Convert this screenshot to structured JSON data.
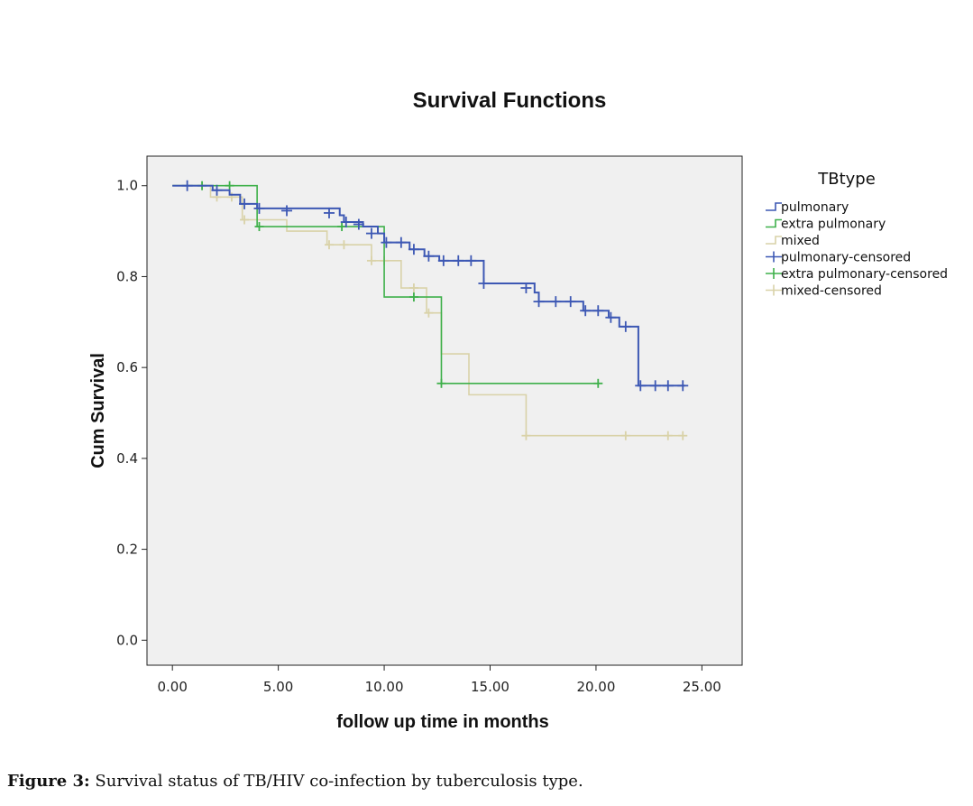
{
  "chart_data": {
    "type": "line",
    "subtype": "kaplan-meier-step",
    "title": "Survival Functions",
    "xlabel": "follow up time in months",
    "ylabel": "Cum Survival",
    "xlim": [
      -1.2,
      26.9
    ],
    "ylim": [
      -0.055,
      1.065
    ],
    "xticks": [
      0,
      5,
      10,
      15,
      20,
      25
    ],
    "xtick_labels": [
      "0.00",
      "5.00",
      "10.00",
      "15.00",
      "20.00",
      "25.00"
    ],
    "yticks": [
      0,
      0.2,
      0.4,
      0.6,
      0.8,
      1.0
    ],
    "ytick_labels": [
      "0.0",
      "0.2",
      "0.4",
      "0.6",
      "0.8",
      "1.0"
    ],
    "grid": false,
    "legend_title": "TBtype",
    "legend_position": "right",
    "legend": [
      {
        "label": "pulmonary",
        "kind": "step",
        "color": "#3d58b4"
      },
      {
        "label": "extra pulmonary",
        "kind": "step",
        "color": "#3eb04a"
      },
      {
        "label": "mixed",
        "kind": "step",
        "color": "#d9d2a8"
      },
      {
        "label": "pulmonary-censored",
        "kind": "censor",
        "color": "#3d58b4"
      },
      {
        "label": "extra pulmonary-censored",
        "kind": "censor",
        "color": "#3eb04a"
      },
      {
        "label": "mixed-censored",
        "kind": "censor",
        "color": "#d9d2a8"
      }
    ],
    "series": [
      {
        "name": "pulmonary",
        "color": "#3d58b4",
        "steps": [
          [
            0,
            1.0
          ],
          [
            1.9,
            0.99
          ],
          [
            2.7,
            0.98
          ],
          [
            3.2,
            0.96
          ],
          [
            4.0,
            0.95
          ],
          [
            7.9,
            0.935
          ],
          [
            8.1,
            0.92
          ],
          [
            9.0,
            0.91
          ],
          [
            9.7,
            0.895
          ],
          [
            10.0,
            0.875
          ],
          [
            11.2,
            0.86
          ],
          [
            11.9,
            0.845
          ],
          [
            12.6,
            0.835
          ],
          [
            14.7,
            0.785
          ],
          [
            17.1,
            0.765
          ],
          [
            17.3,
            0.745
          ],
          [
            19.4,
            0.725
          ],
          [
            20.6,
            0.71
          ],
          [
            21.1,
            0.69
          ],
          [
            22.0,
            0.56
          ],
          [
            24.2,
            0.56
          ]
        ],
        "censored": [
          [
            0.7,
            1.0
          ],
          [
            2.1,
            0.99
          ],
          [
            3.4,
            0.96
          ],
          [
            4.1,
            0.95
          ],
          [
            5.4,
            0.945
          ],
          [
            7.4,
            0.94
          ],
          [
            8.2,
            0.92
          ],
          [
            8.8,
            0.915
          ],
          [
            9.4,
            0.895
          ],
          [
            10.1,
            0.875
          ],
          [
            10.8,
            0.875
          ],
          [
            11.4,
            0.86
          ],
          [
            12.1,
            0.845
          ],
          [
            12.8,
            0.835
          ],
          [
            13.5,
            0.835
          ],
          [
            14.1,
            0.835
          ],
          [
            14.7,
            0.785
          ],
          [
            16.7,
            0.775
          ],
          [
            17.3,
            0.745
          ],
          [
            18.1,
            0.745
          ],
          [
            18.8,
            0.745
          ],
          [
            19.5,
            0.725
          ],
          [
            20.1,
            0.725
          ],
          [
            20.7,
            0.71
          ],
          [
            21.4,
            0.69
          ],
          [
            22.1,
            0.56
          ],
          [
            22.8,
            0.56
          ],
          [
            23.4,
            0.56
          ],
          [
            24.1,
            0.56
          ]
        ]
      },
      {
        "name": "extra pulmonary",
        "color": "#3eb04a",
        "steps": [
          [
            0,
            1.0
          ],
          [
            4.0,
            0.91
          ],
          [
            10.0,
            0.755
          ],
          [
            12.7,
            0.565
          ],
          [
            20.1,
            0.565
          ]
        ],
        "censored": [
          [
            1.4,
            1.0
          ],
          [
            2.7,
            1.0
          ],
          [
            4.1,
            0.91
          ],
          [
            8.0,
            0.91
          ],
          [
            11.4,
            0.755
          ],
          [
            12.7,
            0.565
          ],
          [
            20.1,
            0.565
          ]
        ]
      },
      {
        "name": "mixed",
        "color": "#d9d2a8",
        "steps": [
          [
            0,
            1.0
          ],
          [
            1.8,
            0.975
          ],
          [
            3.3,
            0.925
          ],
          [
            5.4,
            0.9
          ],
          [
            7.3,
            0.87
          ],
          [
            9.4,
            0.835
          ],
          [
            10.8,
            0.775
          ],
          [
            12.0,
            0.72
          ],
          [
            12.7,
            0.63
          ],
          [
            14.0,
            0.54
          ],
          [
            16.7,
            0.45
          ],
          [
            24.1,
            0.45
          ]
        ],
        "censored": [
          [
            2.1,
            0.975
          ],
          [
            2.8,
            0.975
          ],
          [
            3.4,
            0.925
          ],
          [
            7.4,
            0.87
          ],
          [
            8.1,
            0.87
          ],
          [
            9.4,
            0.835
          ],
          [
            10.0,
            0.835
          ],
          [
            11.4,
            0.775
          ],
          [
            12.1,
            0.72
          ],
          [
            16.7,
            0.45
          ],
          [
            21.4,
            0.45
          ],
          [
            23.4,
            0.45
          ],
          [
            24.1,
            0.45
          ]
        ]
      }
    ]
  },
  "caption": {
    "label": "Figure 3:",
    "text": " Survival status of TB/HIV co-infection by tuberculosis type."
  }
}
